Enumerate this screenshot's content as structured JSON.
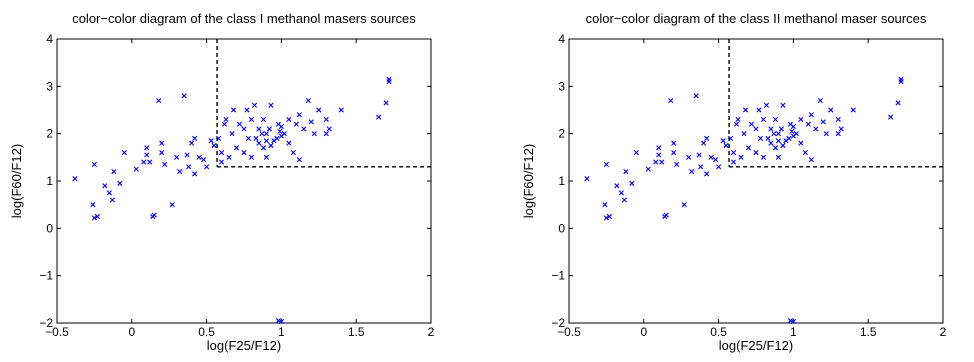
{
  "figure": {
    "background": "#ffffff",
    "marker_color": "#0000ff"
  },
  "chart_data": [
    {
      "type": "scatter",
      "title": "color−color diagram of the class I methanol masers sources",
      "xlabel": "log(F25/F12)",
      "ylabel": "log(F60/F12)",
      "xlim": [
        -0.5,
        2
      ],
      "ylim": [
        -2,
        4
      ],
      "xticks": [
        -0.5,
        0,
        0.5,
        1,
        1.5,
        2
      ],
      "xtick_labels": [
        "−0.5",
        "0",
        "0.5",
        "1",
        "1.5",
        "2"
      ],
      "yticks": [
        -2,
        -1,
        0,
        1,
        2,
        3,
        4
      ],
      "ytick_labels": [
        "−2",
        "−1",
        "0",
        "1",
        "2",
        "3",
        "4"
      ],
      "grid": false,
      "marker": "x",
      "boundary": {
        "x": 0.57,
        "y": 1.3
      },
      "points": [
        [
          -0.38,
          1.05
        ],
        [
          -0.25,
          1.35
        ],
        [
          -0.26,
          0.5
        ],
        [
          -0.25,
          0.22
        ],
        [
          -0.23,
          0.25
        ],
        [
          -0.18,
          0.9
        ],
        [
          -0.15,
          0.75
        ],
        [
          -0.13,
          0.6
        ],
        [
          -0.12,
          1.2
        ],
        [
          -0.08,
          0.95
        ],
        [
          -0.05,
          1.6
        ],
        [
          0.03,
          1.25
        ],
        [
          0.08,
          1.4
        ],
        [
          0.1,
          1.55
        ],
        [
          0.1,
          1.7
        ],
        [
          0.12,
          1.4
        ],
        [
          0.14,
          0.25
        ],
        [
          0.15,
          0.28
        ],
        [
          0.18,
          2.7
        ],
        [
          0.2,
          1.8
        ],
        [
          0.2,
          1.6
        ],
        [
          0.22,
          1.35
        ],
        [
          0.27,
          0.5
        ],
        [
          0.3,
          1.5
        ],
        [
          0.32,
          1.2
        ],
        [
          0.35,
          2.8
        ],
        [
          0.37,
          1.55
        ],
        [
          0.38,
          1.3
        ],
        [
          0.4,
          1.8
        ],
        [
          0.42,
          1.9
        ],
        [
          0.42,
          1.15
        ],
        [
          0.45,
          1.5
        ],
        [
          0.48,
          1.45
        ],
        [
          0.5,
          1.3
        ],
        [
          0.53,
          1.85
        ],
        [
          0.55,
          1.75
        ],
        [
          0.58,
          1.9
        ],
        [
          0.6,
          1.6
        ],
        [
          0.6,
          1.4
        ],
        [
          0.62,
          2.2
        ],
        [
          0.63,
          2.3
        ],
        [
          0.65,
          1.5
        ],
        [
          0.67,
          2.0
        ],
        [
          0.68,
          2.5
        ],
        [
          0.7,
          1.7
        ],
        [
          0.72,
          2.2
        ],
        [
          0.75,
          2.1
        ],
        [
          0.75,
          1.6
        ],
        [
          0.77,
          2.5
        ],
        [
          0.78,
          1.9
        ],
        [
          0.8,
          2.3
        ],
        [
          0.8,
          1.5
        ],
        [
          0.82,
          2.6
        ],
        [
          0.83,
          1.9
        ],
        [
          0.85,
          2.1
        ],
        [
          0.85,
          1.8
        ],
        [
          0.87,
          2.0
        ],
        [
          0.88,
          1.7
        ],
        [
          0.88,
          2.3
        ],
        [
          0.9,
          2.0
        ],
        [
          0.9,
          1.85
        ],
        [
          0.9,
          1.5
        ],
        [
          0.92,
          2.1
        ],
        [
          0.93,
          2.6
        ],
        [
          0.93,
          1.75
        ],
        [
          0.95,
          1.85
        ],
        [
          0.97,
          1.9
        ],
        [
          0.98,
          2.2
        ],
        [
          0.99,
          2.05
        ],
        [
          1.0,
          1.95
        ],
        [
          1.0,
          2.15
        ],
        [
          1.02,
          2.0
        ],
        [
          1.05,
          1.8
        ],
        [
          1.05,
          2.3
        ],
        [
          1.08,
          1.6
        ],
        [
          1.1,
          2.2
        ],
        [
          1.12,
          2.4
        ],
        [
          1.12,
          1.45
        ],
        [
          1.15,
          2.1
        ],
        [
          1.18,
          2.7
        ],
        [
          1.2,
          2.25
        ],
        [
          1.22,
          2.0
        ],
        [
          1.25,
          2.5
        ],
        [
          1.3,
          2.3
        ],
        [
          1.3,
          2.0
        ],
        [
          1.32,
          2.1
        ],
        [
          1.4,
          2.5
        ],
        [
          1.65,
          2.35
        ],
        [
          1.7,
          2.65
        ],
        [
          1.72,
          3.1
        ],
        [
          1.72,
          3.15
        ],
        [
          0.98,
          -1.95
        ],
        [
          1.0,
          -1.97
        ]
      ]
    },
    {
      "type": "scatter",
      "title": "color−color diagram of the class II methanol maser sources",
      "xlabel": "log(F25/F12)",
      "ylabel": "log(F60/F12)",
      "xlim": [
        -0.5,
        2
      ],
      "ylim": [
        -2,
        4
      ],
      "xticks": [
        -0.5,
        0,
        0.5,
        1,
        1.5,
        2
      ],
      "xtick_labels": [
        "−0.5",
        "0",
        "0.5",
        "1",
        "1.5",
        "2"
      ],
      "yticks": [
        -2,
        -1,
        0,
        1,
        2,
        3,
        4
      ],
      "ytick_labels": [
        "−2",
        "−1",
        "0",
        "1",
        "2",
        "3",
        "4"
      ],
      "grid": false,
      "marker": "x",
      "boundary": {
        "x": 0.57,
        "y": 1.3
      },
      "points": [
        [
          -0.38,
          1.05
        ],
        [
          -0.25,
          1.35
        ],
        [
          -0.26,
          0.5
        ],
        [
          -0.25,
          0.22
        ],
        [
          -0.23,
          0.25
        ],
        [
          -0.18,
          0.9
        ],
        [
          -0.15,
          0.75
        ],
        [
          -0.13,
          0.6
        ],
        [
          -0.12,
          1.2
        ],
        [
          -0.08,
          0.95
        ],
        [
          -0.05,
          1.6
        ],
        [
          0.03,
          1.25
        ],
        [
          0.08,
          1.4
        ],
        [
          0.1,
          1.55
        ],
        [
          0.1,
          1.7
        ],
        [
          0.12,
          1.4
        ],
        [
          0.14,
          0.25
        ],
        [
          0.15,
          0.28
        ],
        [
          0.18,
          2.7
        ],
        [
          0.2,
          1.8
        ],
        [
          0.2,
          1.6
        ],
        [
          0.22,
          1.35
        ],
        [
          0.27,
          0.5
        ],
        [
          0.3,
          1.5
        ],
        [
          0.32,
          1.2
        ],
        [
          0.35,
          2.8
        ],
        [
          0.37,
          1.55
        ],
        [
          0.38,
          1.3
        ],
        [
          0.4,
          1.8
        ],
        [
          0.42,
          1.9
        ],
        [
          0.42,
          1.15
        ],
        [
          0.45,
          1.5
        ],
        [
          0.48,
          1.45
        ],
        [
          0.5,
          1.3
        ],
        [
          0.53,
          1.85
        ],
        [
          0.55,
          1.75
        ],
        [
          0.58,
          1.9
        ],
        [
          0.6,
          1.6
        ],
        [
          0.6,
          1.4
        ],
        [
          0.62,
          2.2
        ],
        [
          0.63,
          2.3
        ],
        [
          0.65,
          1.5
        ],
        [
          0.67,
          2.0
        ],
        [
          0.68,
          2.5
        ],
        [
          0.7,
          1.7
        ],
        [
          0.72,
          2.2
        ],
        [
          0.75,
          2.1
        ],
        [
          0.75,
          1.6
        ],
        [
          0.77,
          2.5
        ],
        [
          0.78,
          1.9
        ],
        [
          0.8,
          2.3
        ],
        [
          0.8,
          1.5
        ],
        [
          0.82,
          2.6
        ],
        [
          0.83,
          1.9
        ],
        [
          0.85,
          2.1
        ],
        [
          0.85,
          1.8
        ],
        [
          0.87,
          2.0
        ],
        [
          0.88,
          1.7
        ],
        [
          0.88,
          2.3
        ],
        [
          0.9,
          2.0
        ],
        [
          0.9,
          1.85
        ],
        [
          0.9,
          1.5
        ],
        [
          0.92,
          2.1
        ],
        [
          0.93,
          2.6
        ],
        [
          0.93,
          1.75
        ],
        [
          0.95,
          1.85
        ],
        [
          0.97,
          1.9
        ],
        [
          0.98,
          2.2
        ],
        [
          0.99,
          2.05
        ],
        [
          1.0,
          1.95
        ],
        [
          1.0,
          2.15
        ],
        [
          1.02,
          2.0
        ],
        [
          1.05,
          1.8
        ],
        [
          1.05,
          2.3
        ],
        [
          1.08,
          1.6
        ],
        [
          1.1,
          2.2
        ],
        [
          1.12,
          2.4
        ],
        [
          1.12,
          1.45
        ],
        [
          1.15,
          2.1
        ],
        [
          1.18,
          2.7
        ],
        [
          1.2,
          2.25
        ],
        [
          1.22,
          2.0
        ],
        [
          1.25,
          2.5
        ],
        [
          1.3,
          2.3
        ],
        [
          1.3,
          2.0
        ],
        [
          1.32,
          2.1
        ],
        [
          1.4,
          2.5
        ],
        [
          1.65,
          2.35
        ],
        [
          1.7,
          2.65
        ],
        [
          1.72,
          3.1
        ],
        [
          1.72,
          3.15
        ],
        [
          0.98,
          -1.95
        ],
        [
          1.0,
          -1.97
        ]
      ]
    }
  ]
}
